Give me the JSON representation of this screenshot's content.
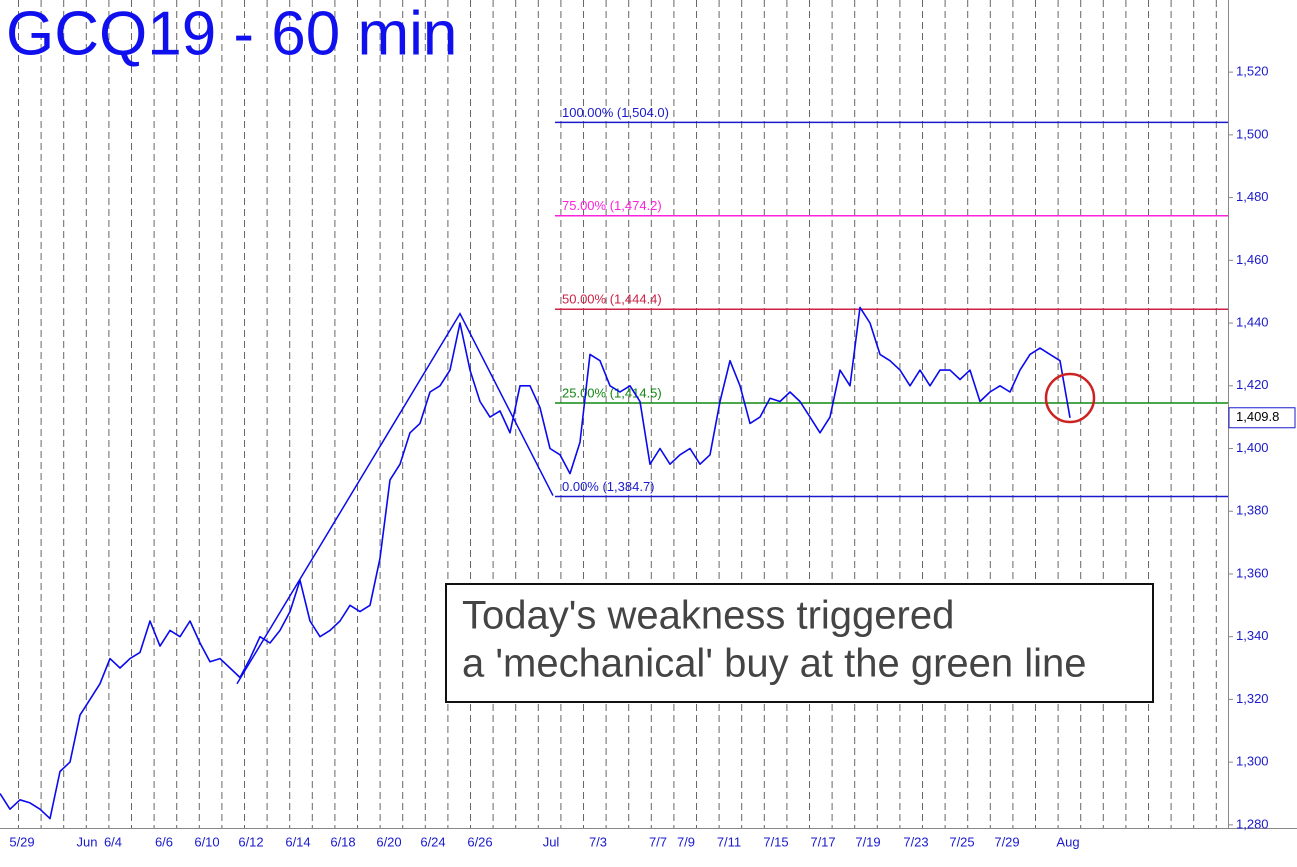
{
  "chart_data": {
    "type": "line",
    "title": "GCQ19 - 60 min",
    "series": [
      {
        "name": "GCQ19",
        "color": "#0a0aee",
        "values": [
          1290,
          1285,
          1288,
          1287,
          1285,
          1282,
          1297,
          1300,
          1315,
          1320,
          1325,
          1333,
          1330,
          1333,
          1335,
          1345,
          1337,
          1342,
          1340,
          1345,
          1338,
          1332,
          1333,
          1330,
          1327,
          1333,
          1340,
          1338,
          1342,
          1348,
          1358,
          1345,
          1340,
          1342,
          1345,
          1350,
          1348,
          1350,
          1365,
          1390,
          1395,
          1405,
          1408,
          1418,
          1420,
          1425,
          1440,
          1425,
          1415,
          1410,
          1412,
          1405,
          1420,
          1420,
          1413,
          1400,
          1398,
          1392,
          1402,
          1430,
          1428,
          1420,
          1418,
          1420,
          1415,
          1395,
          1400,
          1395,
          1398,
          1400,
          1395,
          1398,
          1415,
          1428,
          1420,
          1408,
          1410,
          1416,
          1415,
          1418,
          1415,
          1410,
          1405,
          1410,
          1425,
          1420,
          1445,
          1440,
          1430,
          1428,
          1425,
          1420,
          1425,
          1420,
          1425,
          1425,
          1422,
          1425,
          1415,
          1418,
          1420,
          1418,
          1425,
          1430,
          1432,
          1430,
          1428,
          1409.8
        ]
      }
    ],
    "trend": {
      "color": "#0a0aee",
      "x": [
        23.7,
        46,
        55.3
      ],
      "values": [
        1325,
        1443,
        1385
      ]
    },
    "levels": [
      {
        "label": "100.00% (1,504.0)",
        "value": 1504.0,
        "color": "#1a1acc"
      },
      {
        "label": "75.00% (1,474.2)",
        "value": 1474.2,
        "color": "#ff22dd"
      },
      {
        "label": "50.00% (1,444.4)",
        "value": 1444.4,
        "color": "#cc2244"
      },
      {
        "label": "25.00% (1,414.5)",
        "value": 1414.5,
        "color": "#118811"
      },
      {
        "label": "0.00% (1,384.7)",
        "value": 1384.7,
        "color": "#1a1acc"
      }
    ],
    "last": {
      "value": 1409.8,
      "label": "1,409.8"
    },
    "annotation": [
      "Today's weakness triggered",
      "a 'mechanical' buy at the green line"
    ],
    "xlim": [
      0,
      122.8
    ],
    "xticks": [
      {
        "value": 2.2,
        "label": "5/29"
      },
      {
        "value": 8.7,
        "label": "Jun"
      },
      {
        "value": 11.3,
        "label": "6/4"
      },
      {
        "value": 16.4,
        "label": "6/6"
      },
      {
        "value": 20.7,
        "label": "6/10"
      },
      {
        "value": 25.1,
        "label": "6/12"
      },
      {
        "value": 29.8,
        "label": "6/14"
      },
      {
        "value": 34.3,
        "label": "6/18"
      },
      {
        "value": 38.9,
        "label": "6/20"
      },
      {
        "value": 43.3,
        "label": "6/24"
      },
      {
        "value": 48,
        "label": "6/26"
      },
      {
        "value": 55.1,
        "label": "Jul"
      },
      {
        "value": 59.8,
        "label": "7/3"
      },
      {
        "value": 65.8,
        "label": "7/7"
      },
      {
        "value": 68.6,
        "label": "7/9"
      },
      {
        "value": 72.9,
        "label": "7/11"
      },
      {
        "value": 77.6,
        "label": "7/15"
      },
      {
        "value": 82.3,
        "label": "7/17"
      },
      {
        "value": 86.8,
        "label": "7/19"
      },
      {
        "value": 91.6,
        "label": "7/23"
      },
      {
        "value": 96.2,
        "label": "7/25"
      },
      {
        "value": 100.7,
        "label": "7/29"
      },
      {
        "value": 106.8,
        "label": "Aug"
      }
    ],
    "ylim": [
      1279,
      1543
    ],
    "yticks": [
      {
        "value": 1280,
        "label": "1,280"
      },
      {
        "value": 1300,
        "label": "1,300"
      },
      {
        "value": 1320,
        "label": "1,320"
      },
      {
        "value": 1340,
        "label": "1,340"
      },
      {
        "value": 1360,
        "label": "1,360"
      },
      {
        "value": 1380,
        "label": "1,380"
      },
      {
        "value": 1400,
        "label": "1,400"
      },
      {
        "value": 1420,
        "label": "1,420"
      },
      {
        "value": 1440,
        "label": "1,440"
      },
      {
        "value": 1460,
        "label": "1,460"
      },
      {
        "value": 1480,
        "label": "1,480"
      },
      {
        "value": 1500,
        "label": "1,500"
      },
      {
        "value": 1520,
        "label": "1,520"
      }
    ]
  }
}
